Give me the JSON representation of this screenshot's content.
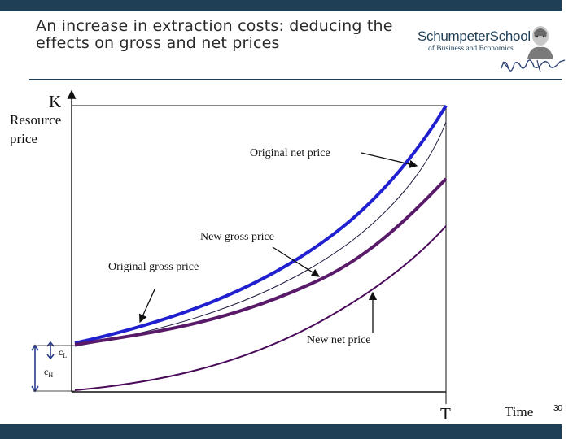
{
  "slide": {
    "title": "An increase in extraction costs: deducing the effects on gross and net prices",
    "page_number": "30"
  },
  "logo": {
    "name": "SchumpeterSchool",
    "subtitle": "of Business and Economics",
    "portrait_icon": "portrait-icon",
    "signature_icon": "signature-icon"
  },
  "diagram": {
    "y_axis_letter": "K",
    "y_axis_label": "Resource price",
    "x_axis_letter": "T",
    "x_axis_label": "Time",
    "labels": {
      "original_net_price": "Original net price",
      "new_gross_price": "New gross price",
      "original_gross_price": "Original gross price",
      "new_net_price": "New net price"
    },
    "cost_low": {
      "letter": "c",
      "subscript": "L"
    },
    "cost_high": {
      "letter": "c",
      "subscript": "H"
    },
    "colors": {
      "original_gross": "#2020d0",
      "original_net": "#1a1a40",
      "new_gross": "#5a1a6a",
      "new_net": "#4a0a5a",
      "chrome": "#1f3f57"
    }
  }
}
